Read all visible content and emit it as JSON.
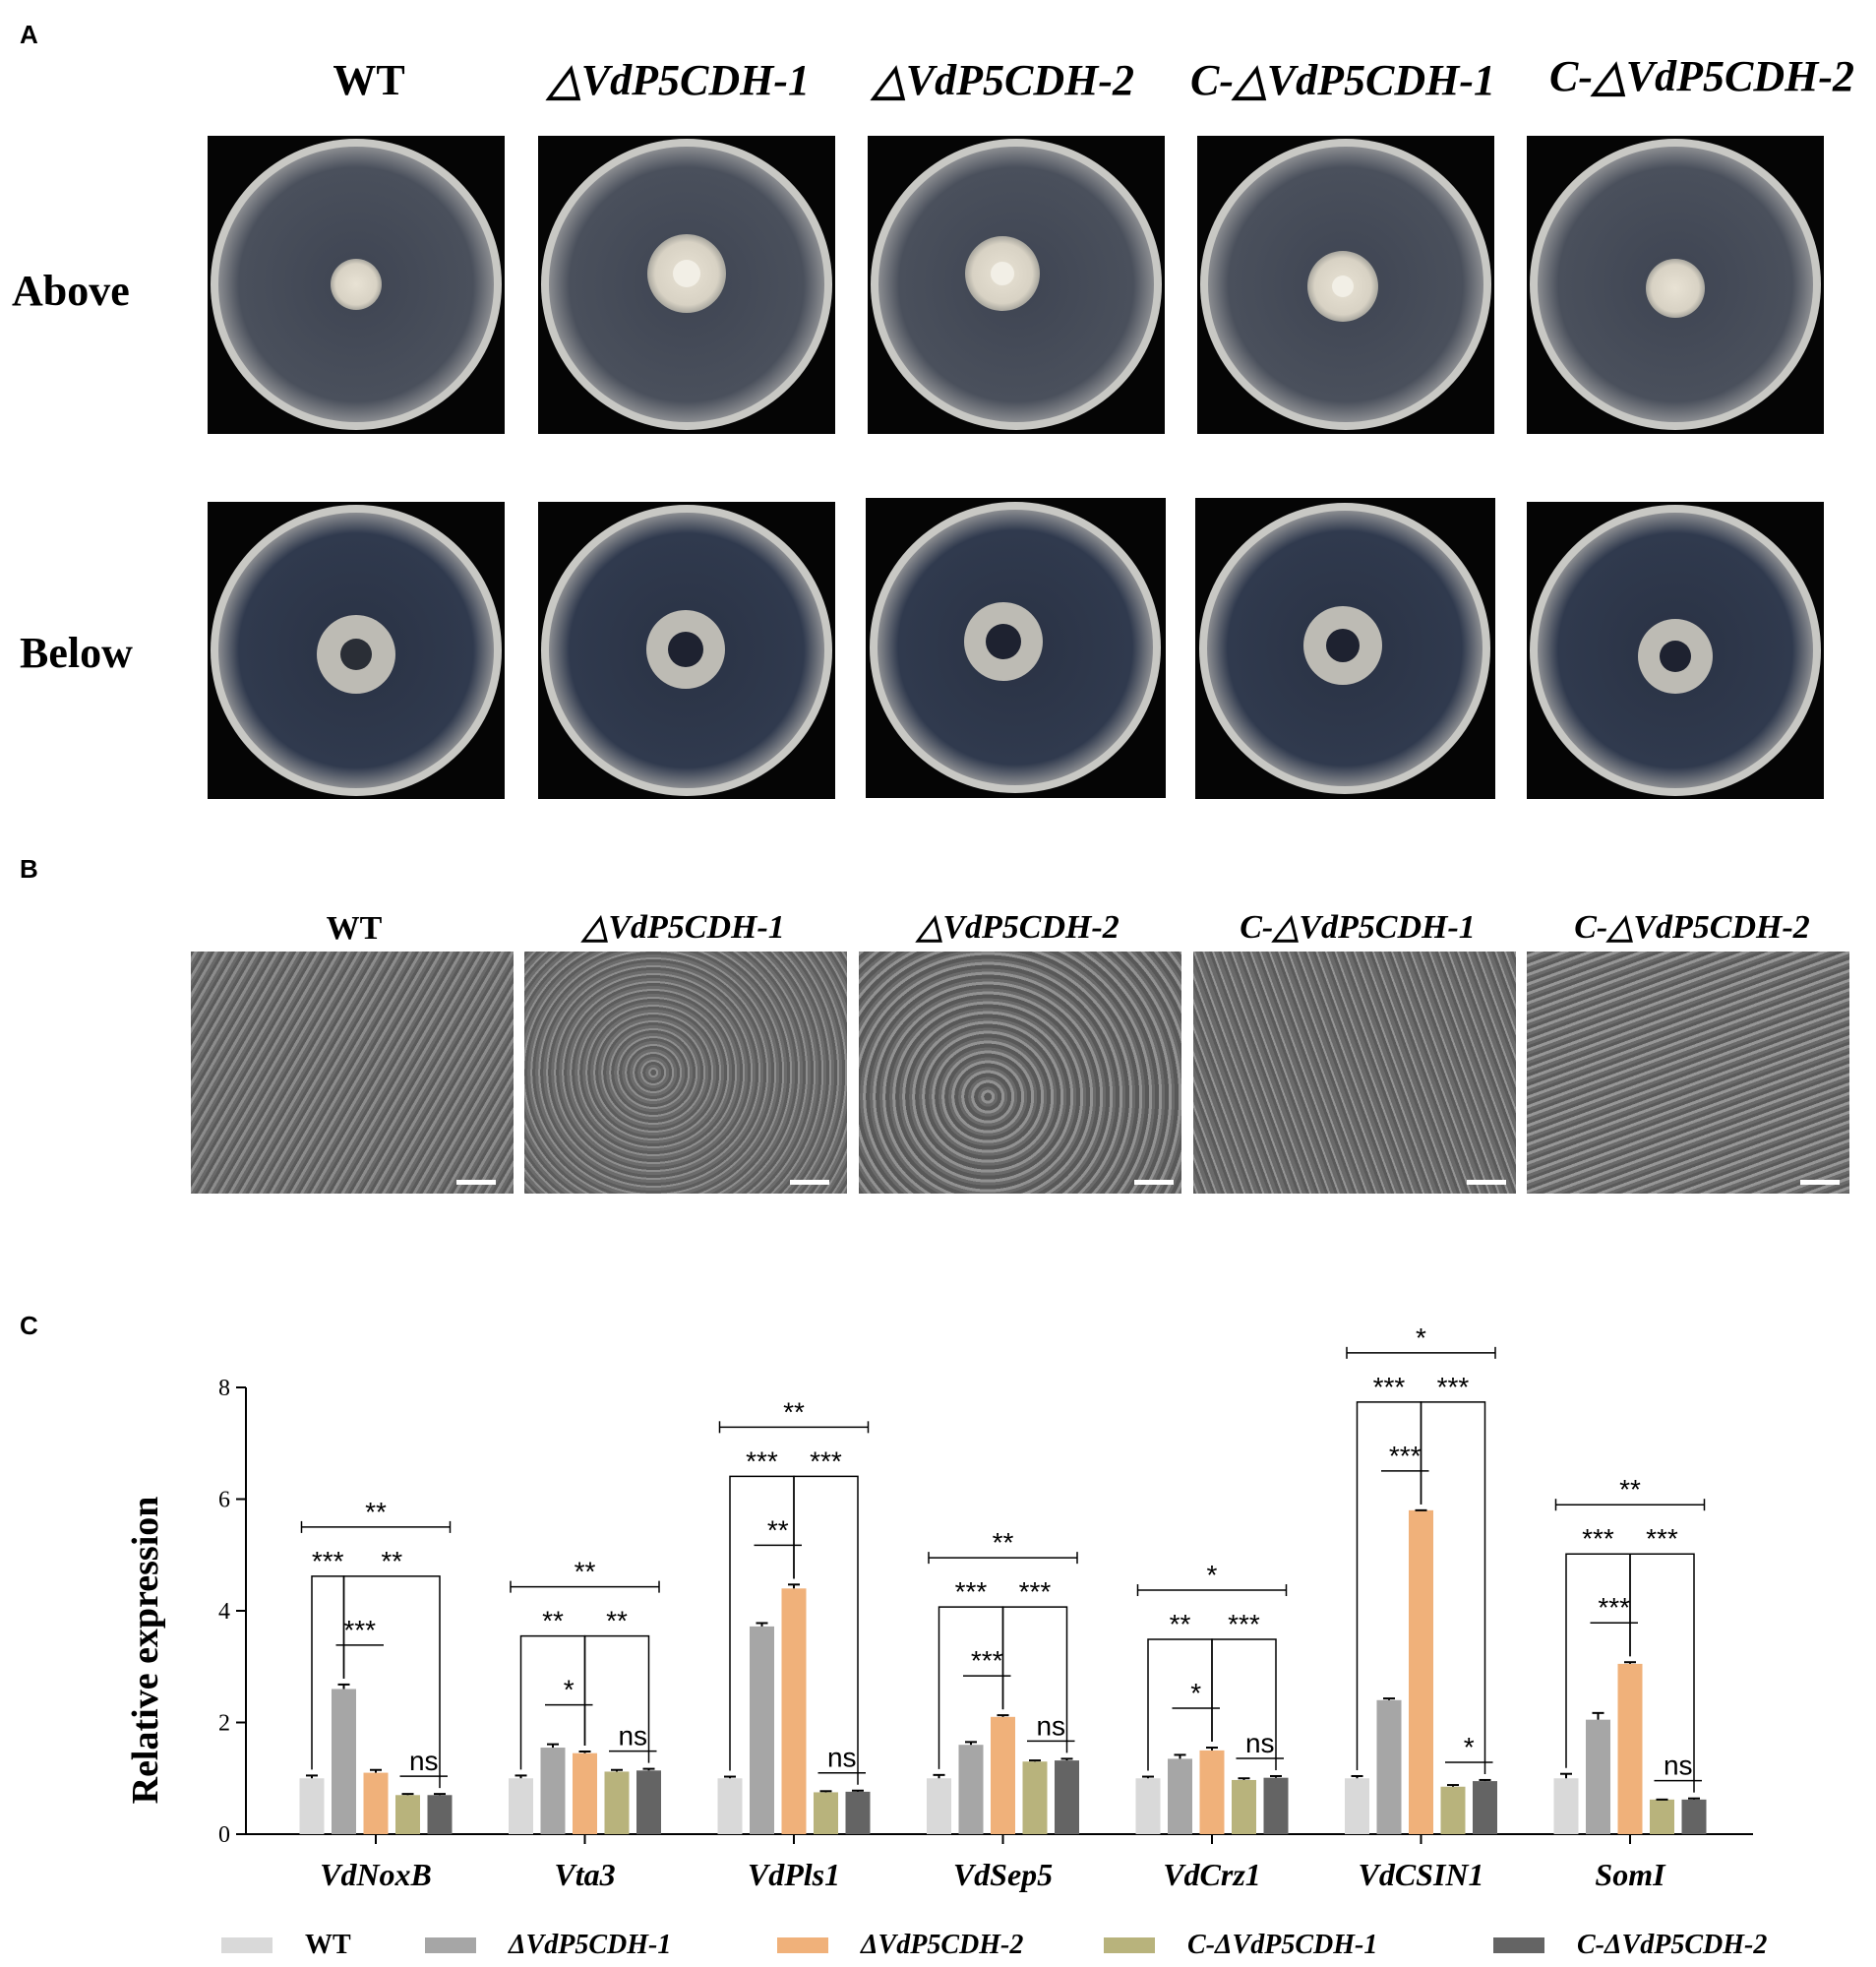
{
  "panels": {
    "a": "A",
    "b": "B",
    "c": "C"
  },
  "strains": [
    "WT",
    "△VdP5CDH-1",
    "△VdP5CDH-2",
    "C-△VdP5CDH-1",
    "C-△VdP5CDH-2"
  ],
  "rows": {
    "above": "Above",
    "below": "Below"
  },
  "colors": {
    "plate_bg": "#050505",
    "wt": "#d9d9d9",
    "del1": "#a6a6a6",
    "del2": "#f0b17a",
    "comp1": "#b8b37c",
    "comp2": "#646464"
  },
  "chart_data": {
    "type": "bar",
    "ylabel": "Relative expression",
    "ylim": [
      0,
      8
    ],
    "yticks": [
      "0",
      "2",
      "4",
      "6",
      "8"
    ],
    "categories": [
      "VdNoxB",
      "Vta3",
      "VdPls1",
      "VdSep5",
      "VdCrz1",
      "VdCSIN1",
      "SomI"
    ],
    "legend_position": "bottom",
    "series": [
      {
        "name": "WT",
        "color": "#d9d9d9",
        "values": [
          1.0,
          1.0,
          1.0,
          1.0,
          1.0,
          1.0,
          1.0
        ],
        "errors": [
          0.05,
          0.05,
          0.03,
          0.06,
          0.03,
          0.04,
          0.08
        ]
      },
      {
        "name": "ΔVdP5CDH-1",
        "color": "#a6a6a6",
        "values": [
          2.6,
          1.55,
          3.72,
          1.6,
          1.35,
          2.4,
          2.05
        ],
        "errors": [
          0.08,
          0.06,
          0.06,
          0.05,
          0.07,
          0.03,
          0.12
        ]
      },
      {
        "name": "ΔVdP5CDH-2",
        "color": "#f0b17a",
        "values": [
          1.1,
          1.45,
          4.4,
          2.1,
          1.5,
          5.8,
          3.05
        ],
        "errors": [
          0.05,
          0.03,
          0.07,
          0.03,
          0.05,
          0.0,
          0.03
        ]
      },
      {
        "name": "C-ΔVdP5CDH-1",
        "color": "#b8b37c",
        "values": [
          0.7,
          1.12,
          0.75,
          1.3,
          0.97,
          0.85,
          0.62
        ],
        "errors": [
          0.02,
          0.03,
          0.02,
          0.02,
          0.03,
          0.03,
          0.0
        ]
      },
      {
        "name": "C-ΔVdP5CDH-2",
        "color": "#646464",
        "values": [
          0.7,
          1.14,
          0.76,
          1.32,
          1.01,
          0.95,
          0.62
        ],
        "errors": [
          0.02,
          0.03,
          0.02,
          0.03,
          0.03,
          0.02,
          0.02
        ]
      }
    ],
    "significance": [
      {
        "category": 0,
        "from": 0,
        "to": 4,
        "label": "**",
        "level": 0
      },
      {
        "category": 0,
        "from": 0,
        "to": 1,
        "label": "***",
        "level": 1
      },
      {
        "category": 0,
        "from": 1,
        "to": 4,
        "label": "**",
        "level": 2
      },
      {
        "category": 0,
        "from": 1,
        "to": 2,
        "label": "***",
        "level": 3
      },
      {
        "category": 0,
        "from": 3,
        "to": 4,
        "label": "ns",
        "level": 4
      },
      {
        "category": 1,
        "from": 0,
        "to": 4,
        "label": "**",
        "level": 0
      },
      {
        "category": 1,
        "from": 0,
        "to": 2,
        "label": "**",
        "level": 1
      },
      {
        "category": 1,
        "from": 2,
        "to": 4,
        "label": "**",
        "level": 2
      },
      {
        "category": 1,
        "from": 1,
        "to": 2,
        "label": "*",
        "level": 3
      },
      {
        "category": 1,
        "from": 3,
        "to": 4,
        "label": "ns",
        "level": 4
      },
      {
        "category": 2,
        "from": 0,
        "to": 4,
        "label": "**",
        "level": 0
      },
      {
        "category": 2,
        "from": 0,
        "to": 2,
        "label": "***",
        "level": 1
      },
      {
        "category": 2,
        "from": 2,
        "to": 4,
        "label": "***",
        "level": 2
      },
      {
        "category": 2,
        "from": 1,
        "to": 2,
        "label": "**",
        "level": 3
      },
      {
        "category": 2,
        "from": 3,
        "to": 4,
        "label": "ns",
        "level": 4
      },
      {
        "category": 3,
        "from": 0,
        "to": 4,
        "label": "**",
        "level": 0
      },
      {
        "category": 3,
        "from": 0,
        "to": 2,
        "label": "***",
        "level": 1
      },
      {
        "category": 3,
        "from": 2,
        "to": 4,
        "label": "***",
        "level": 2
      },
      {
        "category": 3,
        "from": 1,
        "to": 2,
        "label": "***",
        "level": 3
      },
      {
        "category": 3,
        "from": 3,
        "to": 4,
        "label": "ns",
        "level": 4
      },
      {
        "category": 4,
        "from": 0,
        "to": 4,
        "label": "*",
        "level": 0
      },
      {
        "category": 4,
        "from": 0,
        "to": 2,
        "label": "**",
        "level": 1
      },
      {
        "category": 4,
        "from": 2,
        "to": 4,
        "label": "***",
        "level": 2
      },
      {
        "category": 4,
        "from": 1,
        "to": 2,
        "label": "*",
        "level": 3
      },
      {
        "category": 4,
        "from": 3,
        "to": 4,
        "label": "ns",
        "level": 4
      },
      {
        "category": 5,
        "from": 0,
        "to": 4,
        "label": "*",
        "level": 0
      },
      {
        "category": 5,
        "from": 0,
        "to": 2,
        "label": "***",
        "level": 1
      },
      {
        "category": 5,
        "from": 2,
        "to": 4,
        "label": "***",
        "level": 2
      },
      {
        "category": 5,
        "from": 1,
        "to": 2,
        "label": "***",
        "level": 3
      },
      {
        "category": 5,
        "from": 3,
        "to": 4,
        "label": "*",
        "level": 4
      },
      {
        "category": 6,
        "from": 0,
        "to": 4,
        "label": "**",
        "level": 0
      },
      {
        "category": 6,
        "from": 0,
        "to": 2,
        "label": "***",
        "level": 1
      },
      {
        "category": 6,
        "from": 2,
        "to": 4,
        "label": "***",
        "level": 2
      },
      {
        "category": 6,
        "from": 1,
        "to": 2,
        "label": "***",
        "level": 3
      },
      {
        "category": 6,
        "from": 3,
        "to": 4,
        "label": "ns",
        "level": 4
      }
    ]
  }
}
